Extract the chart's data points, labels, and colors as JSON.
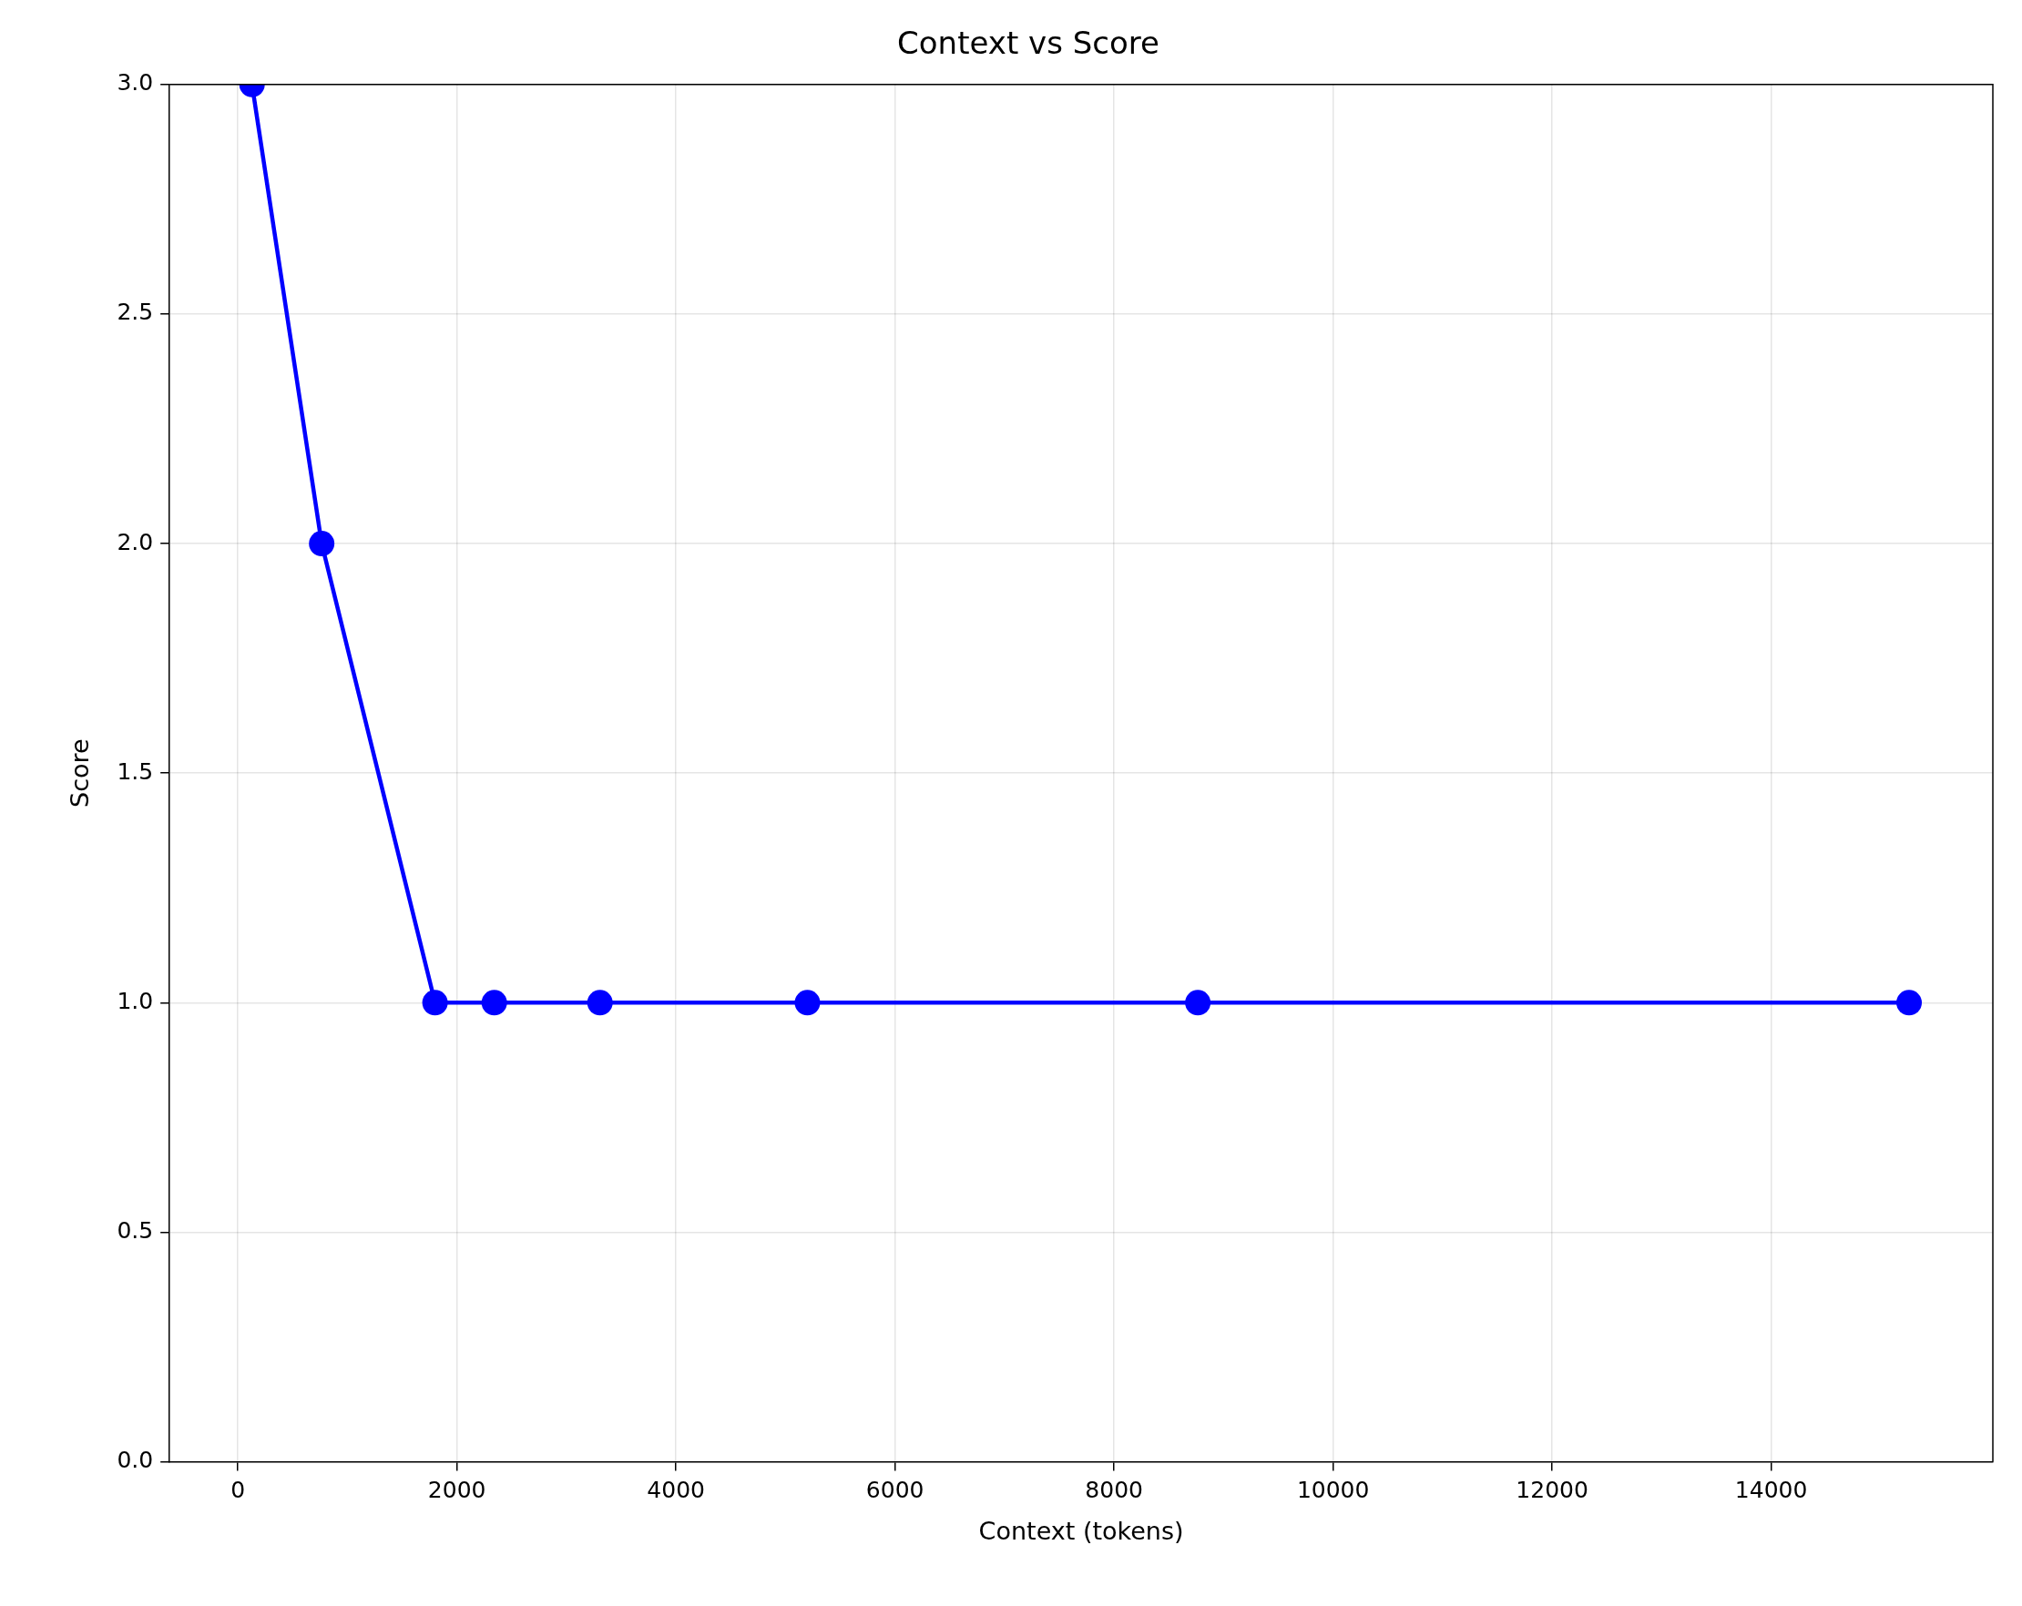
{
  "chart_data": {
    "type": "line",
    "title": "Context vs Score",
    "xlabel": "Context (tokens)",
    "ylabel": "Score",
    "x": [
      129,
      765,
      1800,
      2341,
      3306,
      5200,
      8765,
      15259
    ],
    "series": [
      {
        "color": "#0000ff",
        "values": [
          3,
          2,
          1,
          1,
          1,
          1,
          1,
          1
        ]
      }
    ],
    "xlim": [
      -624,
      16024
    ],
    "xticks": [
      0,
      2000,
      4000,
      6000,
      8000,
      10000,
      12000,
      14000
    ],
    "ylim": [
      0,
      3
    ],
    "yticks": [
      {
        "value": 0,
        "label": "0.0"
      },
      0.5,
      {
        "value": 1,
        "label": "1.0"
      },
      1.5,
      {
        "value": 2,
        "label": "2.0"
      },
      2.5,
      {
        "value": 3,
        "label": "3.0"
      }
    ],
    "grid": true,
    "marker": "circle",
    "line_style": "solid",
    "legend": false
  }
}
